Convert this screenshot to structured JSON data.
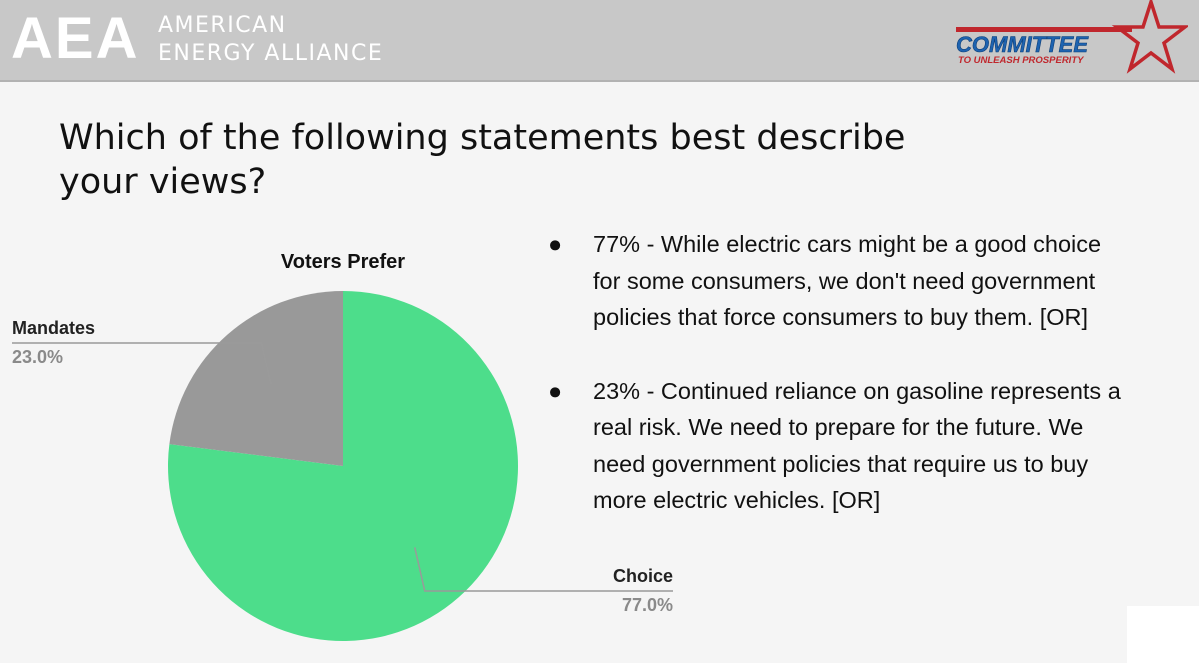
{
  "header": {
    "aea_mark": "AEA",
    "aea_name_line1": "AMERICAN",
    "aea_name_line2": "ENERGY ALLIANCE",
    "partner_logo_text": "COMMITTEE",
    "partner_logo_subtext": "TO UNLEASH PROSPERITY"
  },
  "question": {
    "line1": "Which of the following statements best describe",
    "line2": "your views?"
  },
  "bullets": [
    {
      "marker": "●",
      "lines": [
        "77% - While electric cars might be a good choice",
        "for some consumers, we don't need government",
        "policies that force consumers to buy them.  [OR]"
      ]
    },
    {
      "marker": "●",
      "lines": [
        "23% - Continued reliance on gasoline represents a",
        "real risk.  We need to prepare for the future.  We",
        "need government policies that require us to buy",
        "more electric vehicles.  [OR]"
      ]
    }
  ],
  "colors": {
    "choice": "#4ddd8b",
    "mandates": "#999999",
    "leader_line": "#9a9a9a",
    "header_bg": "#c8c8c8",
    "logo_blue": "#1e63b0",
    "logo_red": "#c0272d"
  },
  "chart_data": {
    "type": "pie",
    "title": "Voters Prefer",
    "slices": [
      {
        "label": "Choice",
        "value": 77.0,
        "display": "77.0%",
        "color": "#4ddd8b"
      },
      {
        "label": "Mandates",
        "value": 23.0,
        "display": "23.0%",
        "color": "#999999"
      }
    ],
    "start_angle_deg": 0,
    "direction": "clockwise"
  }
}
